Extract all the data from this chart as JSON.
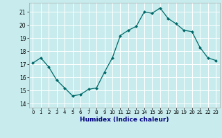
{
  "x": [
    0,
    1,
    2,
    3,
    4,
    5,
    6,
    7,
    8,
    9,
    10,
    11,
    12,
    13,
    14,
    15,
    16,
    17,
    18,
    19,
    20,
    21,
    22,
    23
  ],
  "y": [
    17.1,
    17.5,
    16.8,
    15.8,
    15.2,
    14.6,
    14.7,
    15.1,
    15.2,
    16.4,
    17.5,
    19.2,
    19.6,
    19.9,
    21.0,
    20.9,
    21.3,
    20.5,
    20.1,
    19.6,
    19.5,
    18.3,
    17.5,
    17.3
  ],
  "xlabel": "Humidex (Indice chaleur)",
  "ylabel": "",
  "xlim": [
    -0.5,
    23.5
  ],
  "ylim": [
    13.7,
    21.7
  ],
  "yticks": [
    14,
    15,
    16,
    17,
    18,
    19,
    20,
    21
  ],
  "xticks": [
    0,
    1,
    2,
    3,
    4,
    5,
    6,
    7,
    8,
    9,
    10,
    11,
    12,
    13,
    14,
    15,
    16,
    17,
    18,
    19,
    20,
    21,
    22,
    23
  ],
  "line_color": "#006868",
  "marker_color": "#006868",
  "bg_color": "#c8eced",
  "grid_color": "#ffffff",
  "label_color": "#000080"
}
